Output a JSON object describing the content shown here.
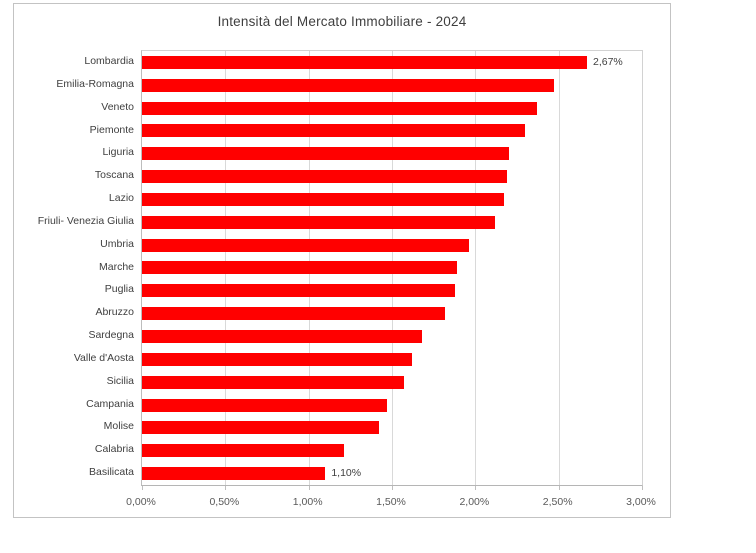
{
  "chart_data": {
    "type": "bar",
    "orientation": "horizontal",
    "title": "Intensità del Mercato Immobiliare - 2024",
    "categories": [
      "Lombardia",
      "Emilia-Romagna",
      "Veneto",
      "Piemonte",
      "Liguria",
      "Toscana",
      "Lazio",
      "Friuli- Venezia Giulia",
      "Umbria",
      "Marche",
      "Puglia",
      "Abruzzo",
      "Sardegna",
      "Valle d'Aosta",
      "Sicilia",
      "Campania",
      "Molise",
      "Calabria",
      "Basilicata"
    ],
    "values": [
      2.67,
      2.47,
      2.37,
      2.3,
      2.2,
      2.19,
      2.17,
      2.12,
      1.96,
      1.89,
      1.88,
      1.82,
      1.68,
      1.62,
      1.57,
      1.47,
      1.42,
      1.21,
      1.1
    ],
    "bar_labels": {
      "0": "2,67%",
      "18": "1,10%"
    },
    "x_ticks": [
      "0,00%",
      "0,50%",
      "1,00%",
      "1,50%",
      "2,00%",
      "2,50%",
      "3,00%"
    ],
    "xlim": [
      0,
      3
    ],
    "grid": true,
    "legend": "none",
    "bar_color": "#ff0000",
    "sorted": "descending"
  }
}
